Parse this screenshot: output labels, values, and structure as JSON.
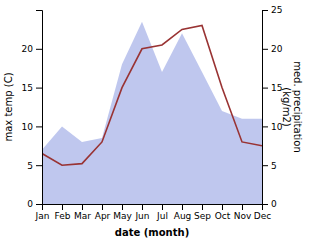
{
  "chart_data": {
    "type": "line",
    "xlabel": "date (month)",
    "ylabel": "max temp (C)",
    "y2label": "med. precipitation\n(kg/m2)",
    "categories": [
      "Jan",
      "Feb",
      "Mar",
      "Apr",
      "May",
      "Jun",
      "Jul",
      "Aug",
      "Sep",
      "Oct",
      "Nov",
      "Dec"
    ],
    "series": [
      {
        "type": "line",
        "color": "#993333",
        "values": [
          6.5,
          5.0,
          5.2,
          8.0,
          15.0,
          20.0,
          20.5,
          22.5,
          23.0,
          15.0,
          8.0,
          7.5
        ]
      },
      {
        "type": "area",
        "color": "#aab4e8",
        "axis": "y2",
        "values": [
          7.0,
          10.0,
          8.0,
          8.5,
          18.0,
          23.5,
          17.0,
          22.0,
          17.0,
          12.0,
          11.0,
          11.0
        ]
      }
    ],
    "ylim": [
      0,
      25
    ],
    "yticks": [
      0,
      5,
      10,
      15,
      20
    ],
    "y2lim": [
      0,
      25
    ],
    "y2ticks": [
      0,
      5,
      10,
      15,
      20,
      25
    ],
    "grid": false
  }
}
